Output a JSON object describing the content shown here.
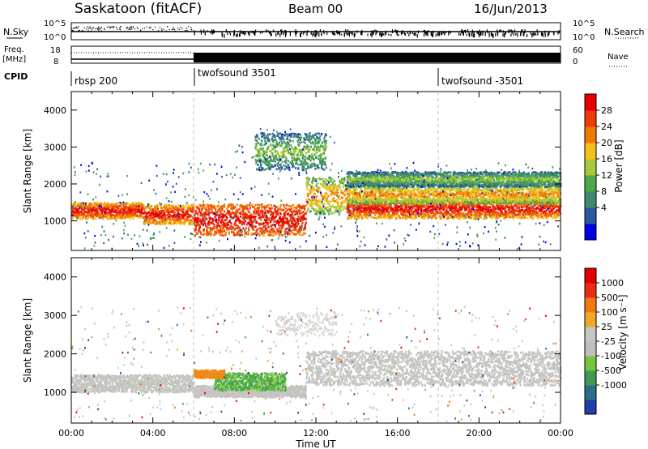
{
  "header": {
    "station": "Saskatoon (fitACF)",
    "beam": "Beam 00",
    "date": "16/Jun/2013"
  },
  "summary_panels": {
    "nsky": {
      "label": "N.Sky",
      "ticks": [
        "10^5",
        "10^0"
      ]
    },
    "nsearch": {
      "label": "N.Search",
      "ticks": [
        "10^5",
        "10^0"
      ]
    },
    "freq": {
      "label_line1": "Freq.",
      "label_line2": "[MHz]",
      "ticks": [
        "18",
        "8"
      ]
    },
    "nave": {
      "label": "Nave",
      "ticks": [
        "60",
        "0"
      ]
    },
    "cpid": {
      "label": "CPID",
      "segments": [
        {
          "name": "rbsp 200",
          "start_hour": 0
        },
        {
          "name": "twofsound 3501",
          "start_hour": 6
        },
        {
          "name": "twofsound -3501",
          "start_hour": 18
        }
      ]
    }
  },
  "chart_data": [
    {
      "type": "heatmap",
      "panel": "power",
      "xlabel": "",
      "ylabel": "Slant Range [km]",
      "x_range_hours": [
        0,
        24
      ],
      "ylim": [
        200,
        4500
      ],
      "yticks": [
        "4000",
        "3000",
        "2000",
        "1000"
      ],
      "colorbar": {
        "label": "Power [dB]",
        "ticks": [
          "28",
          "24",
          "20",
          "16",
          "12",
          "8",
          "4"
        ],
        "colors": [
          "#0000e6",
          "#2c57a3",
          "#3f8a6a",
          "#4ea84a",
          "#a7c93a",
          "#f5c01a",
          "#f07a00",
          "#ef3a0a",
          "#e80000"
        ]
      },
      "features": [
        {
          "start": 0.0,
          "end": 3.5,
          "center_km": 1300,
          "width_km": 220,
          "level": "high"
        },
        {
          "start": 3.5,
          "end": 6.0,
          "center_km": 1200,
          "width_km": 260,
          "level": "high"
        },
        {
          "start": 6.0,
          "end": 11.5,
          "center_km": 1050,
          "width_km": 420,
          "level": "very_high"
        },
        {
          "start": 11.5,
          "end": 13.5,
          "center_km": 1700,
          "width_km": 500,
          "level": "medium"
        },
        {
          "start": 13.5,
          "end": 24.0,
          "center_km": 1350,
          "width_km": 260,
          "level": "high"
        },
        {
          "start": 13.5,
          "end": 24.0,
          "center_km": 1750,
          "width_km": 260,
          "level": "medium"
        },
        {
          "start": 13.5,
          "end": 24.0,
          "center_km": 2150,
          "width_km": 200,
          "level": "low"
        },
        {
          "start": 9.0,
          "end": 12.5,
          "center_km": 2900,
          "width_km": 500,
          "level": "low"
        }
      ]
    },
    {
      "type": "heatmap",
      "panel": "velocity",
      "xlabel": "Time UT",
      "ylabel": "Slant Range [km]",
      "x_range_hours": [
        0,
        24
      ],
      "xticks": [
        "00:00",
        "04:00",
        "08:00",
        "12:00",
        "16:00",
        "20:00",
        "00:00"
      ],
      "ylim": [
        200,
        4500
      ],
      "yticks": [
        "4000",
        "3000",
        "2000",
        "1000"
      ],
      "colorbar": {
        "label": "Velocity [m s⁻¹]",
        "ticks": [
          "1000",
          "500",
          "100",
          "25",
          "-25",
          "-100",
          "-500",
          "-1000"
        ],
        "colors": [
          "#1f3ea8",
          "#2f6d8a",
          "#3f9a55",
          "#74c43c",
          "#bfbfbf",
          "#c6c6c6",
          "#f2a62a",
          "#f07a10",
          "#ea2d10",
          "#e00000"
        ]
      },
      "features": [
        {
          "start": 0.0,
          "end": 6.0,
          "center_km": 1250,
          "width_km": 450,
          "color": "gray"
        },
        {
          "start": 6.0,
          "end": 11.5,
          "center_km": 1050,
          "width_km": 300,
          "color": "gray"
        },
        {
          "start": 7.0,
          "end": 10.5,
          "center_km": 1300,
          "width_km": 450,
          "color": "green"
        },
        {
          "start": 6.0,
          "end": 7.5,
          "center_km": 1500,
          "width_km": 200,
          "color": "orange"
        },
        {
          "start": 11.5,
          "end": 24.0,
          "center_km": 1650,
          "width_km": 900,
          "color": "gray"
        },
        {
          "start": 10.0,
          "end": 13.0,
          "center_km": 2800,
          "width_km": 600,
          "color": "lightgray"
        }
      ]
    }
  ]
}
